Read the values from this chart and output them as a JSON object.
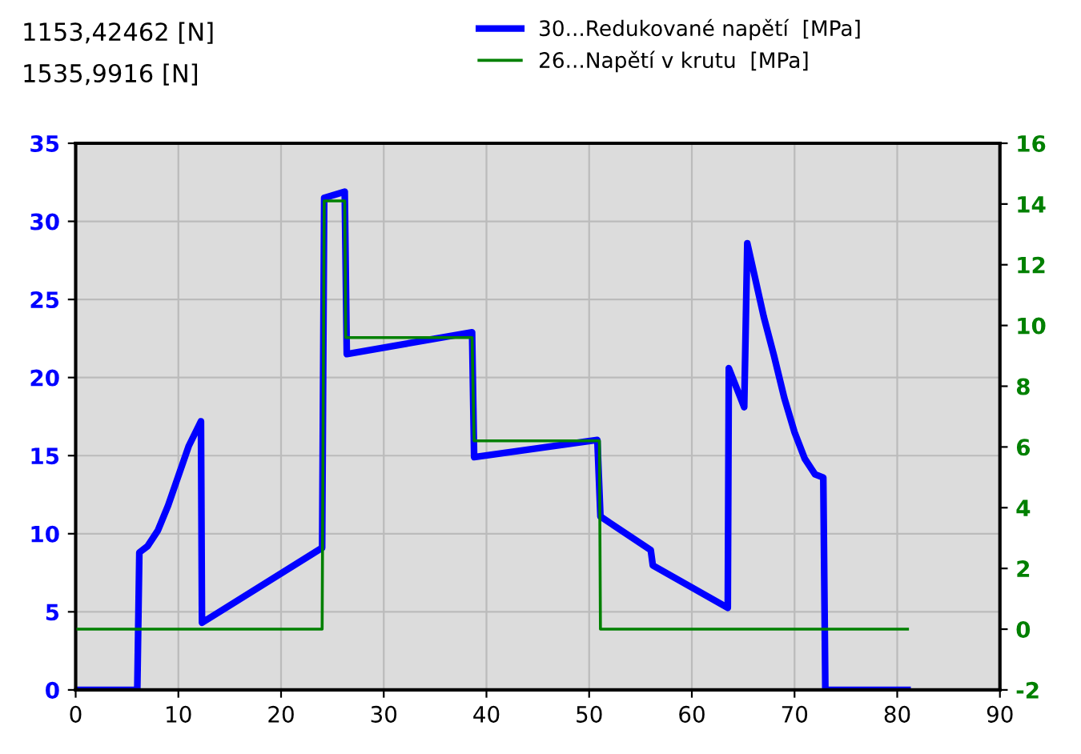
{
  "chart_data": {
    "type": "line",
    "xlim": [
      0,
      90
    ],
    "xticks": [
      0,
      10,
      20,
      30,
      40,
      50,
      60,
      70,
      80,
      90
    ],
    "ylim": [
      0,
      35
    ],
    "yticks": [
      0,
      5,
      10,
      15,
      20,
      25,
      30,
      35
    ],
    "y2lim": [
      -2,
      16
    ],
    "y2ticks": [
      -2,
      0,
      2,
      4,
      6,
      8,
      10,
      12,
      14,
      16
    ],
    "grid": true,
    "legend": "top",
    "line_style": "solid",
    "marker": "none",
    "annotations": [
      "1153,42462 [N]",
      "1535,9916 [N]"
    ],
    "series": [
      {
        "name": "30...Redukované napětí  [MPa]",
        "color": "#0000ff",
        "x": [
          0,
          6,
          6.2,
          7,
          8,
          9,
          10,
          11,
          12.2,
          12.3,
          24,
          24.2,
          26.2,
          26.4,
          38.6,
          38.8,
          50.8,
          51.1,
          56,
          56.2,
          63.5,
          63.6,
          65.1,
          65.4,
          67,
          68,
          69,
          70,
          71,
          72,
          72.8,
          73,
          81
        ],
        "values": [
          0,
          0,
          8.8,
          9.2,
          10.2,
          11.8,
          13.7,
          15.6,
          17.2,
          4.3,
          9.1,
          31.5,
          31.9,
          21.5,
          22.9,
          14.9,
          16.0,
          11.1,
          8.95,
          7.97,
          5.25,
          20.6,
          18.1,
          28.6,
          23.9,
          21.4,
          18.7,
          16.5,
          14.8,
          13.8,
          13.6,
          0,
          0
        ]
      },
      {
        "name": "26...Napětí v krutu  [MPa]",
        "color": "#008000",
        "axis": "y2",
        "x": [
          0,
          24,
          24.2,
          26.2,
          26.3,
          38.6,
          38.8,
          51,
          51.1,
          81
        ],
        "values": [
          0,
          0,
          14.1,
          14.1,
          9.6,
          9.6,
          6.2,
          6.2,
          0,
          0
        ]
      }
    ]
  }
}
